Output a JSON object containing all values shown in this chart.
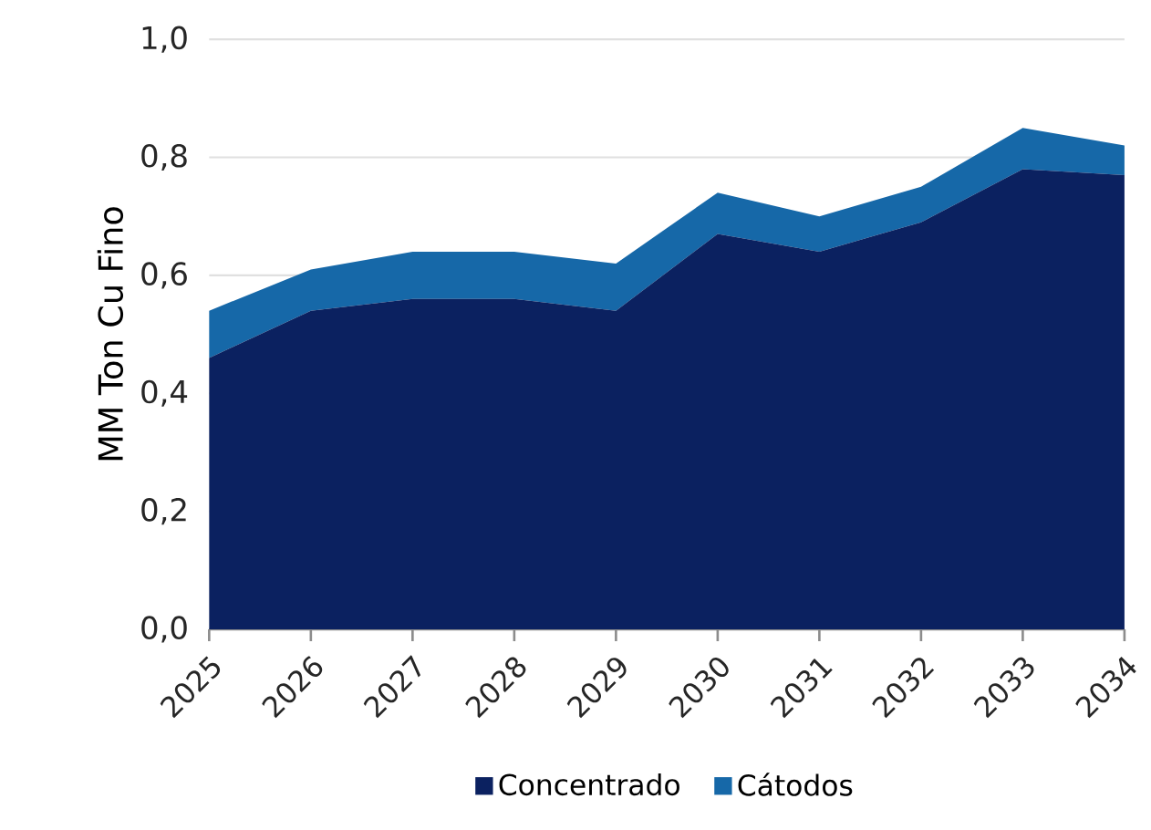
{
  "chart_data": {
    "type": "area",
    "stacked": true,
    "ylabel": "MM Ton Cu Fino",
    "categories": [
      "2025",
      "2026",
      "2027",
      "2028",
      "2029",
      "2030",
      "2031",
      "2032",
      "2033",
      "2034"
    ],
    "series": [
      {
        "name": "Concentrado",
        "color": "#0b2160",
        "values": [
          0.46,
          0.54,
          0.56,
          0.56,
          0.54,
          0.67,
          0.64,
          0.69,
          0.78,
          0.77
        ]
      },
      {
        "name": "Cátodos",
        "color": "#1668a8",
        "values": [
          0.08,
          0.07,
          0.08,
          0.08,
          0.08,
          0.07,
          0.06,
          0.06,
          0.07,
          0.05
        ]
      }
    ],
    "ylim": [
      0,
      1
    ],
    "yticks": [
      {
        "value": 0,
        "label": "0,0"
      },
      {
        "value": 0.2,
        "label": "0,2"
      },
      {
        "value": 0.4,
        "label": "0,4"
      },
      {
        "value": 0.6,
        "label": "0,6"
      },
      {
        "value": 0.8,
        "label": "0,8"
      },
      {
        "value": 1,
        "label": "1,0"
      }
    ],
    "grid": "y",
    "legend": "bottom"
  }
}
